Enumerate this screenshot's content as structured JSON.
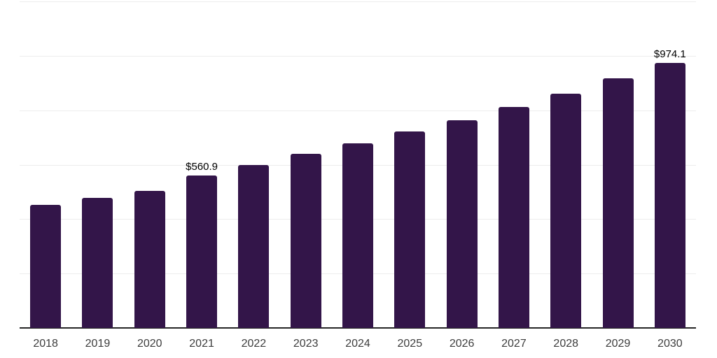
{
  "chart_data": {
    "type": "bar",
    "title": "",
    "xlabel": "",
    "ylabel": "",
    "categories": [
      "2018",
      "2019",
      "2020",
      "2021",
      "2022",
      "2023",
      "2024",
      "2025",
      "2026",
      "2027",
      "2028",
      "2029",
      "2030"
    ],
    "values": [
      452,
      478,
      503,
      560.9,
      599,
      640,
      678,
      722,
      764,
      813,
      861,
      918,
      974.1
    ],
    "data_labels": [
      {
        "category": "2021",
        "text": "$560.9"
      },
      {
        "category": "2030",
        "text": "$974.1"
      }
    ],
    "ylim": [
      0,
      1200
    ],
    "grid_step": 200,
    "grid": true,
    "legend": false,
    "y_tick_labels_visible": false
  },
  "style": {
    "bar_color": "#331549",
    "grid_color": "#ededed",
    "axis_color": "#262626",
    "x_tick_label_color": "#3d3d3d",
    "data_label_color": "#000000",
    "background_color": "#ffffff"
  }
}
